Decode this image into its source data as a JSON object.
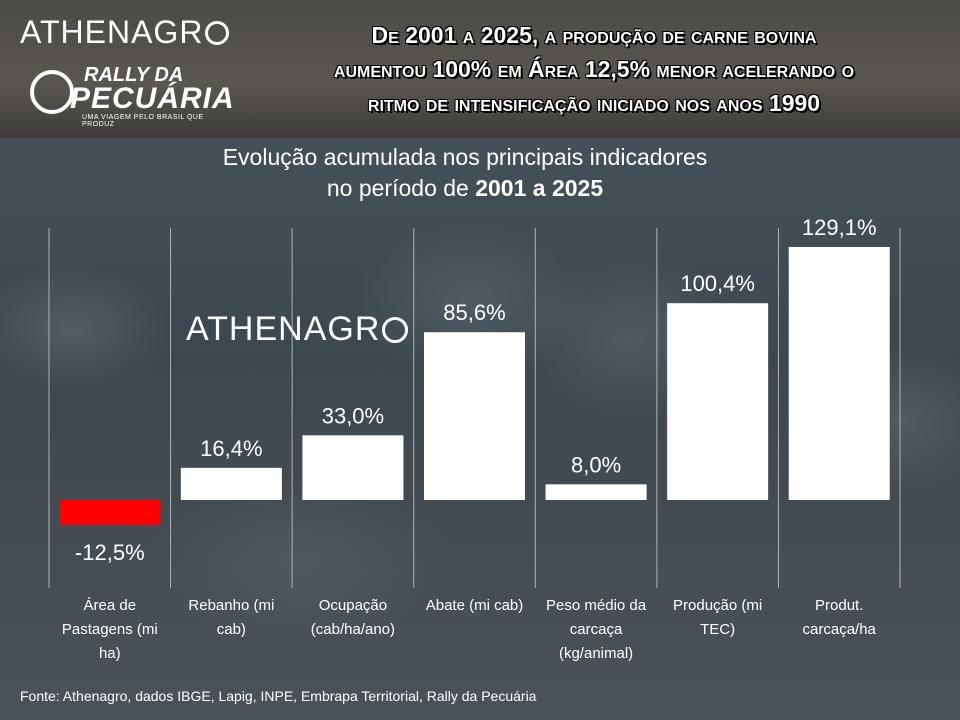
{
  "brand": {
    "logo_top": "ATHENAGR",
    "rally_line1": "RALLY DA",
    "rally_line2": "PECUÁRIA",
    "rally_tagline": "UMA VIAGEM PELO BRASIL QUE PRODUZ",
    "watermark": "ATHENAGR"
  },
  "headline": {
    "line1": "De 2001 a 2025, a produção de carne bovina",
    "line2": "aumentou 100% em Área 12,5% menor acelerando o",
    "line3": "ritmo de intensificação iniciado nos anos 1990"
  },
  "colors": {
    "positive_bar": "#ffffff",
    "negative_bar": "#ff0000",
    "gridline": "#c8cdd1"
  },
  "chart_data": {
    "type": "bar",
    "title_line1": "Evolução acumulada nos principais indicadores",
    "title_line2_prefix": "no período de ",
    "title_line2_bold": "2001 a 2025",
    "categories": [
      "Área de Pastagens (mi ha)",
      "Rebanho (mi cab)",
      "Ocupação (cab/ha/ano)",
      "Abate (mi cab)",
      "Peso médio da carcaça (kg/animal)",
      "Produção (mi TEC)",
      "Produt. carcaça/ha"
    ],
    "category_lines": [
      [
        "Área de",
        "Pastagens (mi",
        "ha)"
      ],
      [
        "Rebanho (mi",
        "cab)"
      ],
      [
        "Ocupação",
        "(cab/ha/ano)"
      ],
      [
        "Abate (mi cab)"
      ],
      [
        "Peso médio da",
        "carcaça",
        "(kg/animal)"
      ],
      [
        "Produção (mi",
        "TEC)"
      ],
      [
        "Produt.",
        "carcaça/ha"
      ]
    ],
    "values": [
      -12.5,
      16.4,
      33.0,
      85.6,
      8.0,
      100.4,
      129.1
    ],
    "data_labels": [
      "-12,5%",
      "16,4%",
      "33,0%",
      "85,6%",
      "8,0%",
      "100,4%",
      "129,1%"
    ],
    "unit": "%",
    "grid": true,
    "legend": "none"
  },
  "source": "Fonte: Athenagro, dados IBGE, Lapig, INPE, Embrapa Territorial, Rally da Pecuária"
}
